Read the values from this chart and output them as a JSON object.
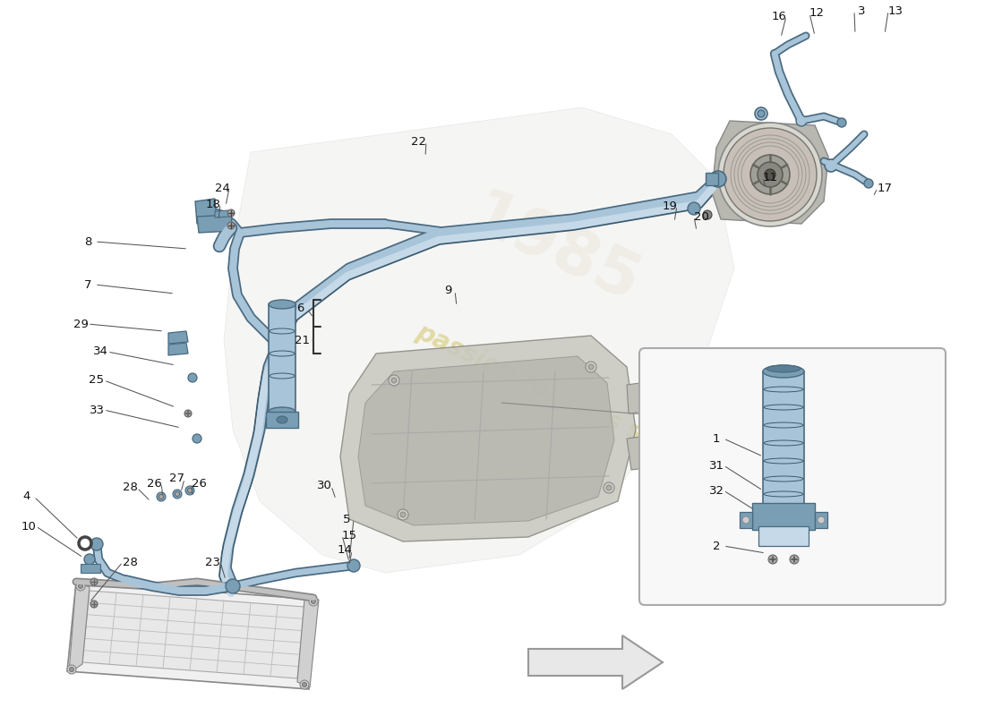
{
  "background_color": "#ffffff",
  "pipe_fill": "#a8c4d8",
  "pipe_fill_light": "#c5d9e8",
  "pipe_outline": "#4a6a80",
  "pipe_outline_dark": "#3a5a6e",
  "fitting_fill": "#7a9fb5",
  "fitting_dark": "#5a7f95",
  "metal_fill": "#d0d0c8",
  "metal_outline": "#888880",
  "label_color": "#111111",
  "watermark_color": "#d4c870",
  "inset_bg": "#f8f8f8",
  "inset_outline": "#aaaaaa",
  "condenser_fill": "#ffffff",
  "condenser_outline": "#888888",
  "arrow_fill": "#e0e0e0",
  "arrow_outline": "#999999"
}
